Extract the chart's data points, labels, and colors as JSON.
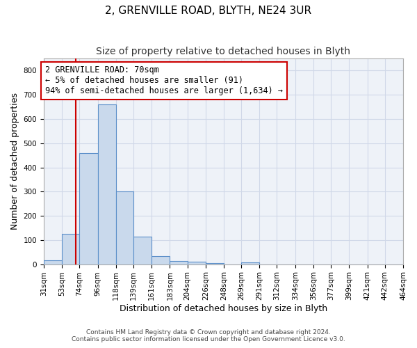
{
  "title1": "2, GRENVILLE ROAD, BLYTH, NE24 3UR",
  "title2": "Size of property relative to detached houses in Blyth",
  "xlabel": "Distribution of detached houses by size in Blyth",
  "ylabel": "Number of detached properties",
  "bar_heights": [
    15,
    125,
    460,
    660,
    300,
    115,
    32,
    13,
    10,
    5,
    0,
    8,
    0,
    0,
    0,
    0,
    0,
    0,
    0,
    0,
    0
  ],
  "bin_edges": [
    31,
    53,
    74,
    96,
    118,
    139,
    161,
    183,
    204,
    226,
    248,
    269,
    291,
    312,
    334,
    356,
    377,
    399,
    421,
    442,
    464
  ],
  "bar_color": "#c9d9ec",
  "bar_edge_color": "#5b8fc9",
  "property_size": 70,
  "red_line_color": "#cc0000",
  "annotation_line1": "2 GRENVILLE ROAD: 70sqm",
  "annotation_line2": "← 5% of detached houses are smaller (91)",
  "annotation_line3": "94% of semi-detached houses are larger (1,634) →",
  "annotation_box_color": "#ffffff",
  "annotation_border_color": "#cc0000",
  "ylim": [
    0,
    850
  ],
  "yticks": [
    0,
    100,
    200,
    300,
    400,
    500,
    600,
    700,
    800
  ],
  "grid_color": "#d0d8e8",
  "background_color": "#eef2f8",
  "footer_text1": "Contains HM Land Registry data © Crown copyright and database right 2024.",
  "footer_text2": "Contains public sector information licensed under the Open Government Licence v3.0.",
  "title1_fontsize": 11,
  "title2_fontsize": 10,
  "tick_fontsize": 7.5,
  "ylabel_fontsize": 9,
  "xlabel_fontsize": 9,
  "annotation_fontsize": 8.5,
  "footer_fontsize": 6.5
}
